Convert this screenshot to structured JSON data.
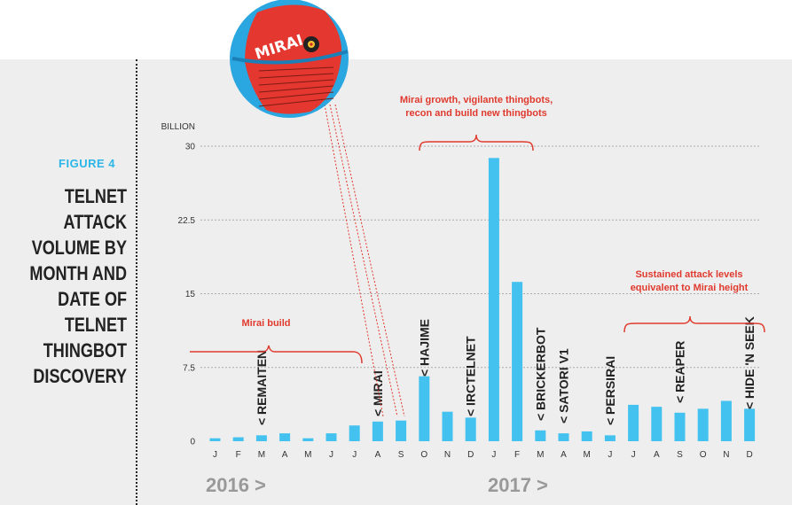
{
  "figure_label": "FIGURE 4",
  "figure_title": "TELNET ATTACK VOLUME BY MONTH AND DATE OF TELNET THINGBOT DISCOVERY",
  "colors": {
    "bar": "#44c2ef",
    "annotation": "#e03a2e",
    "grid": "#aaaaaa",
    "accent": "#2bb5e8"
  },
  "logo_text": "MIRAI",
  "chart_data": {
    "type": "bar",
    "unit_label": "BILLION",
    "ylim": [
      0,
      30
    ],
    "yticks": [
      "0",
      "7.5",
      "15",
      "22.5",
      "30"
    ],
    "ytick_values": [
      0,
      7.5,
      15,
      22.5,
      30
    ],
    "grid": true,
    "categories": [
      "J",
      "F",
      "M",
      "A",
      "M",
      "J",
      "J",
      "A",
      "S",
      "O",
      "N",
      "D",
      "J",
      "F",
      "M",
      "A",
      "M",
      "J",
      "J",
      "A",
      "S",
      "O",
      "N",
      "D"
    ],
    "values": [
      0.3,
      0.4,
      0.6,
      0.8,
      0.3,
      0.8,
      1.6,
      2.0,
      2.1,
      6.6,
      3.0,
      2.4,
      28.8,
      16.2,
      1.1,
      0.8,
      1.0,
      0.6,
      3.7,
      3.5,
      2.9,
      3.3,
      4.1,
      3.3
    ],
    "year_labels": [
      {
        "text": "2016 >",
        "index": 0
      },
      {
        "text": "2017 >",
        "index": 12
      }
    ],
    "events": [
      {
        "label": "REMAITEN",
        "index": 2
      },
      {
        "label": "MIRAI",
        "index": 7
      },
      {
        "label": "HAJIME",
        "index": 9
      },
      {
        "label": "IRCTELNET",
        "index": 11
      },
      {
        "label": "BRICKERBOT",
        "index": 14
      },
      {
        "label": "SATORI V1",
        "index": 15
      },
      {
        "label": "PERSIRAI",
        "index": 17
      },
      {
        "label": "REAPER",
        "index": 20
      },
      {
        "label": "HIDE 'N SEEK",
        "index": 23
      }
    ],
    "annotations": [
      {
        "lines": [
          "Mirai build"
        ]
      },
      {
        "lines": [
          "Mirai growth, vigilante thingbots,",
          "recon and build new thingbots"
        ]
      },
      {
        "lines": [
          "Sustained attack levels",
          "equivalent to Mirai height"
        ]
      }
    ]
  }
}
